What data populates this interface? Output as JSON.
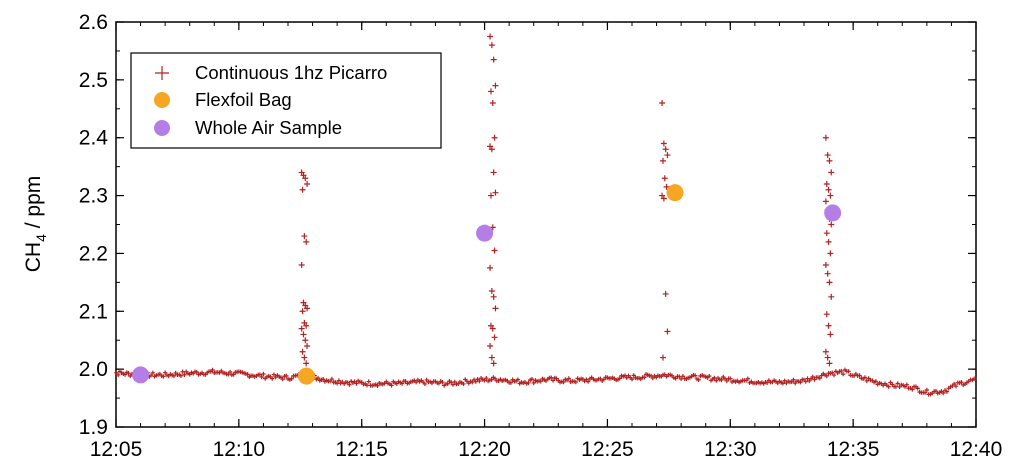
{
  "chart_data": {
    "type": "scatter",
    "title": "",
    "xlabel": "",
    "ylabel": {
      "base": "CH",
      "subscript": "4",
      "suffix": " / ppm"
    },
    "xlim": [
      "12:05",
      "12:40"
    ],
    "ylim": [
      1.9,
      2.6
    ],
    "x_ticks": [
      "12:05",
      "12:10",
      "12:15",
      "12:20",
      "12:25",
      "12:30",
      "12:35",
      "12:40"
    ],
    "y_ticks": [
      "1.9",
      "2.0",
      "2.1",
      "2.2",
      "2.3",
      "2.4",
      "2.5",
      "2.6"
    ],
    "grid": false,
    "legend_position": "top-left",
    "series": [
      {
        "name": "Continuous 1hz Picarro",
        "marker": "plus",
        "color": "#b22222",
        "baseline": [
          [
            "12:04:40",
            1.995
          ],
          [
            "12:06:00",
            1.99
          ],
          [
            "12:07:00",
            1.99
          ],
          [
            "12:08:00",
            1.993
          ],
          [
            "12:09:00",
            1.995
          ],
          [
            "12:10:00",
            1.992
          ],
          [
            "12:11:00",
            1.988
          ],
          [
            "12:12:00",
            1.985
          ],
          [
            "12:12:40",
            1.99
          ],
          [
            "12:13:30",
            1.982
          ],
          [
            "12:14:30",
            1.977
          ],
          [
            "12:15:30",
            1.975
          ],
          [
            "12:16:30",
            1.975
          ],
          [
            "12:17:30",
            1.978
          ],
          [
            "12:18:30",
            1.975
          ],
          [
            "12:19:30",
            1.98
          ],
          [
            "12:20:30",
            1.983
          ],
          [
            "12:21:30",
            1.978
          ],
          [
            "12:22:30",
            1.982
          ],
          [
            "12:23:30",
            1.98
          ],
          [
            "12:24:30",
            1.982
          ],
          [
            "12:25:30",
            1.985
          ],
          [
            "12:26:30",
            1.987
          ],
          [
            "12:27:20",
            1.99
          ],
          [
            "12:28:00",
            1.987
          ],
          [
            "12:29:00",
            1.985
          ],
          [
            "12:30:00",
            1.982
          ],
          [
            "12:31:00",
            1.979
          ],
          [
            "12:32:00",
            1.977
          ],
          [
            "12:33:00",
            1.98
          ],
          [
            "12:34:00",
            1.993
          ],
          [
            "12:34:40",
            1.995
          ],
          [
            "12:35:20",
            1.985
          ],
          [
            "12:36:00",
            1.977
          ],
          [
            "12:36:40",
            1.972
          ],
          [
            "12:37:20",
            1.97
          ],
          [
            "12:38:00",
            1.96
          ],
          [
            "12:38:40",
            1.962
          ],
          [
            "12:39:20",
            1.975
          ],
          [
            "12:40:00",
            1.982
          ]
        ],
        "spikes": [
          {
            "x": "12:12:40",
            "y": [
              2.34,
              2.335,
              2.33,
              2.32,
              2.31,
              2.23,
              2.22,
              2.18,
              2.115,
              2.11,
              2.105,
              2.1,
              2.08,
              2.075,
              2.07,
              2.06,
              2.05,
              2.04,
              2.03,
              2.02,
              2.01
            ]
          },
          {
            "x": "12:20:20",
            "y": [
              2.575,
              2.56,
              2.535,
              2.49,
              2.48,
              2.46,
              2.4,
              2.385,
              2.38,
              2.34,
              2.305,
              2.3,
              2.245,
              2.205,
              2.175,
              2.135,
              2.125,
              2.105,
              2.075,
              2.07,
              2.055,
              2.04,
              2.02,
              2.01
            ]
          },
          {
            "x": "12:27:20",
            "y": [
              2.46,
              2.39,
              2.38,
              2.37,
              2.36,
              2.33,
              2.315,
              2.3,
              2.295,
              2.13,
              2.065,
              2.02
            ]
          },
          {
            "x": "12:34:00",
            "y": [
              2.4,
              2.37,
              2.36,
              2.34,
              2.32,
              2.31,
              2.3,
              2.29,
              2.275,
              2.26,
              2.25,
              2.235,
              2.22,
              2.2,
              2.18,
              2.165,
              2.15,
              2.125,
              2.095,
              2.075,
              2.06,
              2.03,
              2.02,
              2.01
            ]
          }
        ]
      },
      {
        "name": "Flexfoil Bag",
        "marker": "circle",
        "color": "#f5a623",
        "points": [
          [
            "12:12:45",
            1.988
          ],
          [
            "12:27:45",
            2.305
          ]
        ]
      },
      {
        "name": "Whole Air Sample",
        "marker": "circle",
        "color": "#b57ee6",
        "points": [
          [
            "12:06:00",
            1.99
          ],
          [
            "12:20:00",
            2.235
          ],
          [
            "12:34:10",
            2.27
          ]
        ]
      }
    ]
  }
}
